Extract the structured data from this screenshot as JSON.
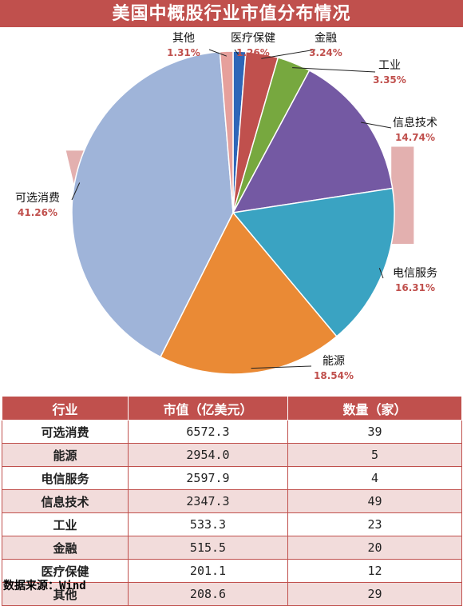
{
  "chart_data": {
    "type": "pie",
    "title": "美国中概股行业市值分布情况",
    "watermark": "Wind",
    "slices": [
      {
        "name": "医疗保健",
        "pct_label": "1.26%",
        "value": 1.26,
        "color": "#2e66b8"
      },
      {
        "name": "金融",
        "pct_label": "3.24%",
        "value": 3.24,
        "color": "#c0504d"
      },
      {
        "name": "工业",
        "pct_label": "3.35%",
        "value": 3.35,
        "color": "#77a83f"
      },
      {
        "name": "信息技术",
        "pct_label": "14.74%",
        "value": 14.74,
        "color": "#7459a3"
      },
      {
        "name": "电信服务",
        "pct_label": "16.31%",
        "value": 16.31,
        "color": "#3aa3c2"
      },
      {
        "name": "能源",
        "pct_label": "18.54%",
        "value": 18.54,
        "color": "#ea8a35"
      },
      {
        "name": "可选消费",
        "pct_label": "41.26%",
        "value": 41.26,
        "color": "#9fb4d9"
      },
      {
        "name": "其他",
        "pct_label": "1.31%",
        "value": 1.31,
        "color": "#e6a09c"
      }
    ]
  },
  "table": {
    "headers": [
      "行业",
      "市值（亿美元）",
      "数量（家）"
    ],
    "rows": [
      {
        "industry": "可选消费",
        "market_cap": "6572.3",
        "count": "39"
      },
      {
        "industry": "能源",
        "market_cap": "2954.0",
        "count": "5"
      },
      {
        "industry": "电信服务",
        "market_cap": "2597.9",
        "count": "4"
      },
      {
        "industry": "信息技术",
        "market_cap": "2347.3",
        "count": "49"
      },
      {
        "industry": "工业",
        "market_cap": "533.3",
        "count": "23"
      },
      {
        "industry": "金融",
        "market_cap": "515.5",
        "count": "20"
      },
      {
        "industry": "医疗保健",
        "market_cap": "201.1",
        "count": "12"
      },
      {
        "industry": "其他",
        "market_cap": "208.6",
        "count": "29"
      }
    ]
  },
  "source": "数据来源：Wind"
}
